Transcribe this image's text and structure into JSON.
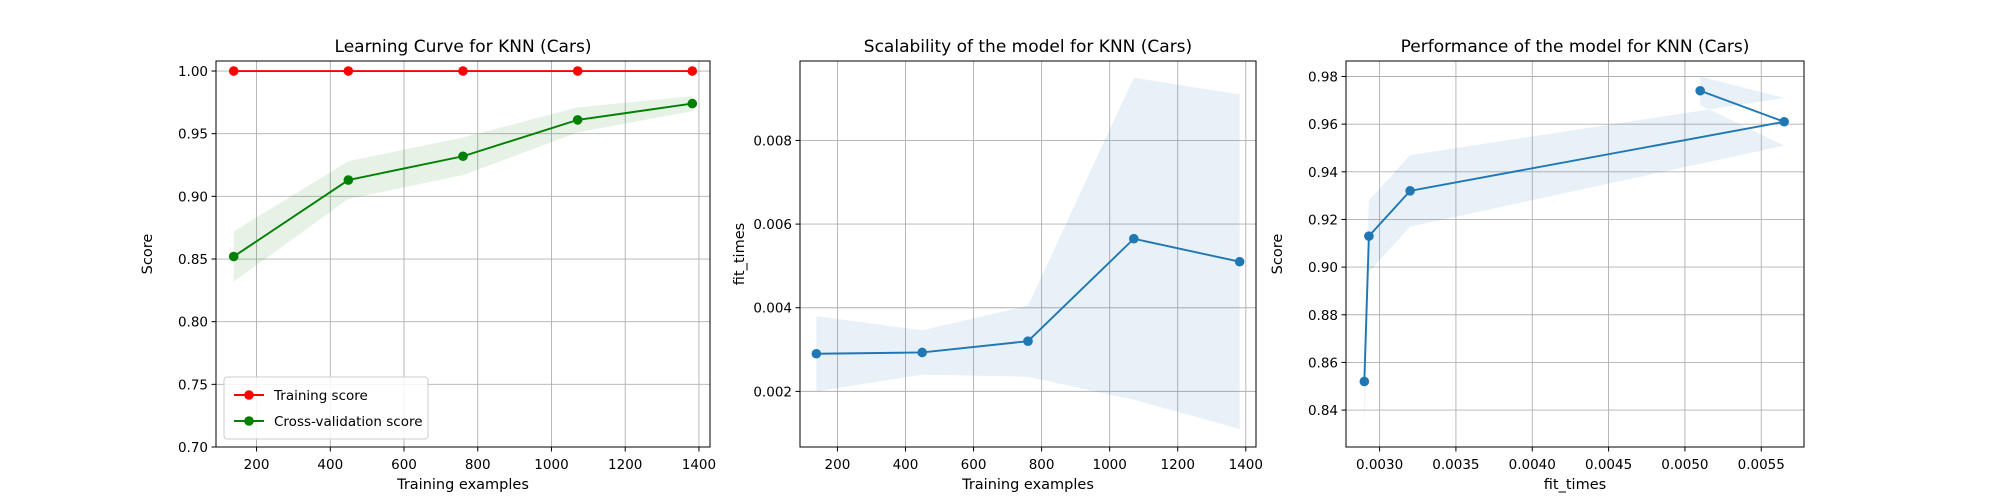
{
  "chart_data": [
    {
      "type": "line",
      "title": "Learning Curve for KNN (Cars)",
      "xlabel": "Training examples",
      "ylabel": "Score",
      "xlim": [
        90,
        1430
      ],
      "ylim": [
        0.7,
        1.008
      ],
      "xticks": [
        200,
        400,
        600,
        800,
        1000,
        1200,
        1400
      ],
      "yticks": [
        0.7,
        0.75,
        0.8,
        0.85,
        0.9,
        0.95,
        1.0
      ],
      "ytick_decimals": 2,
      "grid": true,
      "legend_position": "lower-left",
      "x": [
        138,
        449,
        760,
        1071,
        1382
      ],
      "series": [
        {
          "name": "Training score",
          "color": "#ff0000",
          "values": [
            1.0,
            1.0,
            1.0,
            1.0,
            1.0
          ],
          "band_low": [
            1.0,
            1.0,
            1.0,
            1.0,
            1.0
          ],
          "band_high": [
            1.0,
            1.0,
            1.0,
            1.0,
            1.0
          ]
        },
        {
          "name": "Cross-validation score",
          "color": "#008000",
          "values": [
            0.852,
            0.913,
            0.932,
            0.961,
            0.974
          ],
          "band_low": [
            0.832,
            0.898,
            0.917,
            0.951,
            0.968
          ],
          "band_high": [
            0.872,
            0.928,
            0.947,
            0.971,
            0.98
          ]
        }
      ]
    },
    {
      "type": "line",
      "title": "Scalability of the model for KNN (Cars)",
      "xlabel": "Training examples",
      "ylabel": "fit_times",
      "xlim": [
        90,
        1430
      ],
      "ylim": [
        0.00067,
        0.0099
      ],
      "xticks": [
        200,
        400,
        600,
        800,
        1000,
        1200,
        1400
      ],
      "yticks": [
        0.002,
        0.004,
        0.006,
        0.008
      ],
      "ytick_decimals": 3,
      "grid": true,
      "x": [
        138,
        449,
        760,
        1071,
        1382
      ],
      "series": [
        {
          "name": "",
          "color": "#1f77b4",
          "values": [
            0.0029,
            0.00293,
            0.0032,
            0.00565,
            0.0051
          ],
          "band_low": [
            0.002,
            0.0024,
            0.00235,
            0.0018,
            0.0011
          ],
          "band_high": [
            0.0038,
            0.00346,
            0.00405,
            0.0095,
            0.0091
          ]
        }
      ]
    },
    {
      "type": "line",
      "title": "Performance of the model for KNN (Cars)",
      "xlabel": "fit_times",
      "ylabel": "Score",
      "xlim": [
        0.00278,
        0.00578
      ],
      "ylim": [
        0.8245,
        0.9865
      ],
      "xticks": [
        0.003,
        0.0035,
        0.004,
        0.0045,
        0.005,
        0.0055
      ],
      "xtick_decimals": 4,
      "yticks": [
        0.84,
        0.86,
        0.88,
        0.9,
        0.92,
        0.94,
        0.96,
        0.98
      ],
      "ytick_decimals": 2,
      "grid": true,
      "series": [
        {
          "name": "",
          "color": "#1f77b4",
          "x": [
            0.0029,
            0.00293,
            0.0032,
            0.00565,
            0.0051
          ],
          "values": [
            0.852,
            0.913,
            0.932,
            0.961,
            0.974
          ],
          "band_low": [
            0.832,
            0.898,
            0.917,
            0.951,
            0.968
          ],
          "band_high": [
            0.872,
            0.928,
            0.947,
            0.971,
            0.98
          ]
        }
      ]
    }
  ]
}
